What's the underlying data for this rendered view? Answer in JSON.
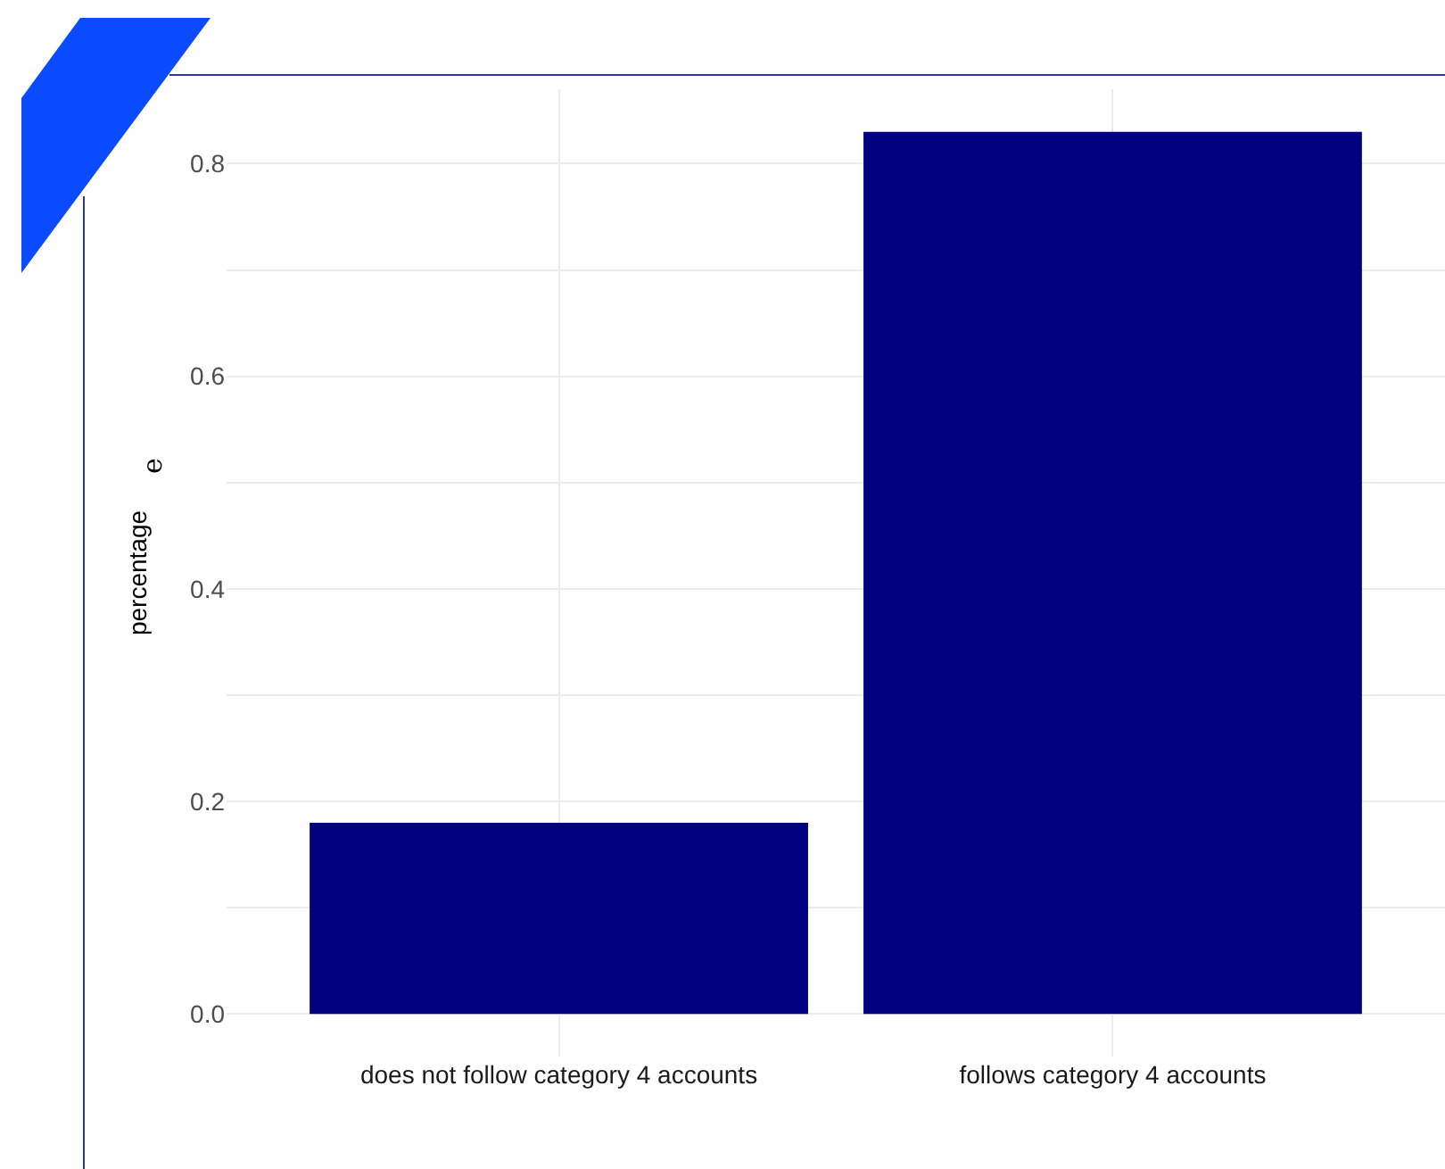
{
  "chart_data": {
    "type": "bar",
    "ylabel": "percentage",
    "categories": [
      "does not follow category 4 accounts",
      "follows category 4 accounts"
    ],
    "values": [
      0.18,
      0.83
    ],
    "color": "#000080",
    "ylim": [
      -0.04,
      0.87
    ],
    "yticks": [
      {
        "value": 0,
        "label": "0.0"
      },
      {
        "value": 0.1,
        "label": null
      },
      0.2,
      {
        "value": 0.3,
        "label": null
      },
      0.4,
      {
        "value": 0.5,
        "label": null
      },
      0.6,
      {
        "value": 0.7,
        "label": null
      },
      0.8
    ],
    "grid": true,
    "annotations": [
      "e"
    ]
  }
}
